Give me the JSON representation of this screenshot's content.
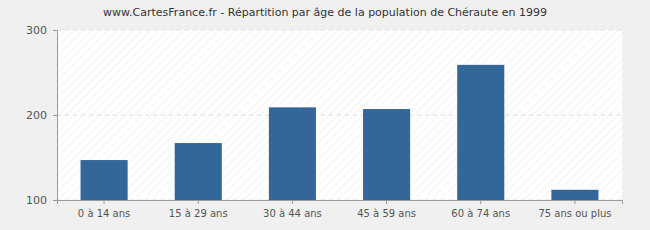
{
  "chart_data": {
    "type": "bar",
    "title": "www.CartesFrance.fr - Répartition par âge de la population de Chéraute en 1999",
    "categories": [
      "0 à 14 ans",
      "15 à 29 ans",
      "30 à 44 ans",
      "45 à 59 ans",
      "60 à 74 ans",
      "75 ans ou plus"
    ],
    "values": [
      147,
      167,
      209,
      207,
      259,
      112
    ],
    "color": "#336699",
    "ylim": [
      100,
      300
    ],
    "yticks": [
      100,
      200,
      300
    ],
    "grid": true
  }
}
